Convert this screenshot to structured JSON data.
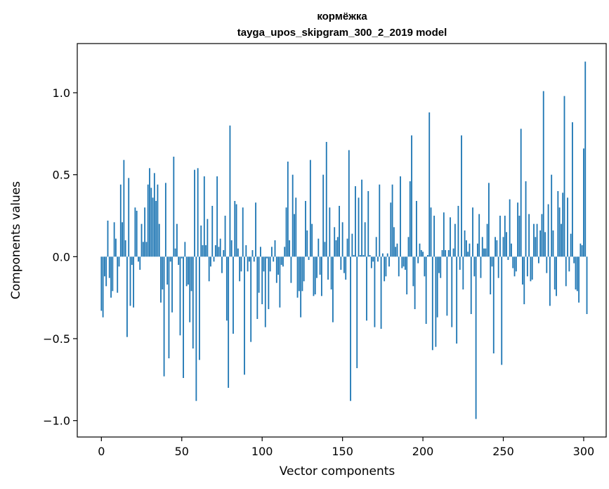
{
  "chart_data": {
    "type": "bar",
    "title": "кормёжка",
    "subtitle": "tayga_upos_skipgram_300_2_2019 model",
    "xlabel": "Vector components",
    "ylabel": "Components values",
    "xlim": [
      -15,
      314
    ],
    "ylim": [
      -1.1,
      1.3
    ],
    "xticks": [
      0,
      50,
      100,
      150,
      200,
      250,
      300
    ],
    "yticks": [
      -1.0,
      -0.5,
      0.0,
      0.5,
      1.0
    ],
    "ytick_labels": [
      "−1.0",
      "−0.5",
      "0.0",
      "0.5",
      "1.0"
    ],
    "grid": false,
    "bar_color": "#1f77b4",
    "values": [
      -0.33,
      -0.37,
      -0.12,
      -0.18,
      0.22,
      -0.13,
      -0.25,
      -0.21,
      0.21,
      0.11,
      -0.22,
      -0.06,
      0.44,
      0.21,
      0.59,
      0.1,
      -0.49,
      0.48,
      -0.3,
      -0.05,
      -0.31,
      0.3,
      0.28,
      -0.03,
      -0.08,
      0.2,
      0.09,
      0.3,
      0.09,
      0.44,
      0.54,
      0.42,
      0.36,
      0.51,
      0.34,
      0.44,
      0.2,
      -0.28,
      -0.2,
      -0.73,
      0.45,
      -0.17,
      -0.62,
      -0.03,
      -0.34,
      0.61,
      0.05,
      0.2,
      -0.05,
      -0.48,
      -0.01,
      -0.74,
      0.09,
      -0.18,
      -0.17,
      -0.4,
      -0.21,
      -0.56,
      0.53,
      -0.88,
      0.54,
      -0.63,
      0.19,
      0.07,
      0.49,
      0.07,
      0.23,
      -0.15,
      -0.06,
      0.31,
      -0.03,
      0.07,
      0.49,
      0.06,
      0.11,
      -0.1,
      0.04,
      0.25,
      -0.39,
      -0.8,
      0.8,
      0.1,
      -0.47,
      0.34,
      0.32,
      0.05,
      -0.15,
      -0.09,
      0.3,
      -0.72,
      0.07,
      -0.09,
      -0.03,
      -0.52,
      0.04,
      -0.03,
      0.33,
      -0.38,
      -0.22,
      0.06,
      -0.29,
      -0.09,
      -0.43,
      -0.01,
      -0.32,
      -0.09,
      0.06,
      -0.03,
      0.1,
      -0.16,
      -0.11,
      -0.31,
      -0.05,
      -0.06,
      0.06,
      0.3,
      0.58,
      0.1,
      -0.16,
      0.5,
      0.26,
      0.36,
      -0.25,
      -0.21,
      -0.37,
      -0.21,
      -0.15,
      0.34,
      0.16,
      -0.02,
      0.59,
      0.2,
      -0.24,
      -0.23,
      -0.13,
      0.11,
      -0.11,
      -0.24,
      0.5,
      0.09,
      0.7,
      -0.14,
      0.3,
      -0.2,
      -0.4,
      0.18,
      0.1,
      0.12,
      0.31,
      -0.08,
      0.21,
      -0.1,
      -0.14,
      0.11,
      0.65,
      -0.88,
      0.14,
      0.01,
      0.43,
      -0.68,
      0.36,
      0.01,
      0.47,
      0.01,
      0.21,
      -0.39,
      0.4,
      0.01,
      -0.07,
      -0.03,
      -0.43,
      0.12,
      -0.03,
      0.44,
      -0.44,
      0.02,
      -0.15,
      -0.12,
      0.02,
      -0.06,
      0.33,
      0.44,
      0.18,
      0.06,
      0.08,
      -0.12,
      0.49,
      -0.07,
      -0.06,
      -0.08,
      -0.23,
      0.12,
      0.46,
      0.74,
      -0.18,
      -0.32,
      0.34,
      -0.04,
      0.08,
      0.04,
      0.03,
      -0.12,
      -0.41,
      0.01,
      0.88,
      0.3,
      -0.57,
      0.25,
      -0.55,
      -0.37,
      -0.1,
      -0.13,
      0.04,
      0.27,
      0.04,
      -0.36,
      0.04,
      0.24,
      -0.43,
      0.05,
      0.2,
      -0.53,
      0.31,
      -0.08,
      0.74,
      -0.2,
      0.16,
      0.1,
      0.03,
      0.08,
      -0.35,
      0.3,
      -0.12,
      -0.99,
      0.08,
      0.26,
      -0.13,
      0.12,
      0.05,
      0.05,
      0.2,
      0.45,
      -0.23,
      -0.06,
      -0.59,
      0.12,
      0.1,
      -0.13,
      0.25,
      -0.66,
      0.12,
      0.25,
      0.15,
      -0.02,
      0.35,
      0.08,
      -0.07,
      -0.12,
      -0.09,
      0.33,
      0.25,
      0.78,
      -0.17,
      -0.29,
      0.46,
      -0.12,
      0.26,
      -0.15,
      -0.14,
      0.2,
      0.12,
      0.2,
      -0.04,
      0.16,
      0.26,
      1.01,
      0.15,
      -0.1,
      0.32,
      -0.3,
      0.5,
      0.16,
      -0.2,
      -0.24,
      0.4,
      0.3,
      0.2,
      0.39,
      0.98,
      -0.18,
      0.36,
      -0.09,
      0.14,
      0.82,
      -0.04,
      -0.2,
      -0.21,
      -0.28,
      0.08,
      0.07,
      0.66,
      1.19,
      -0.35
    ]
  }
}
